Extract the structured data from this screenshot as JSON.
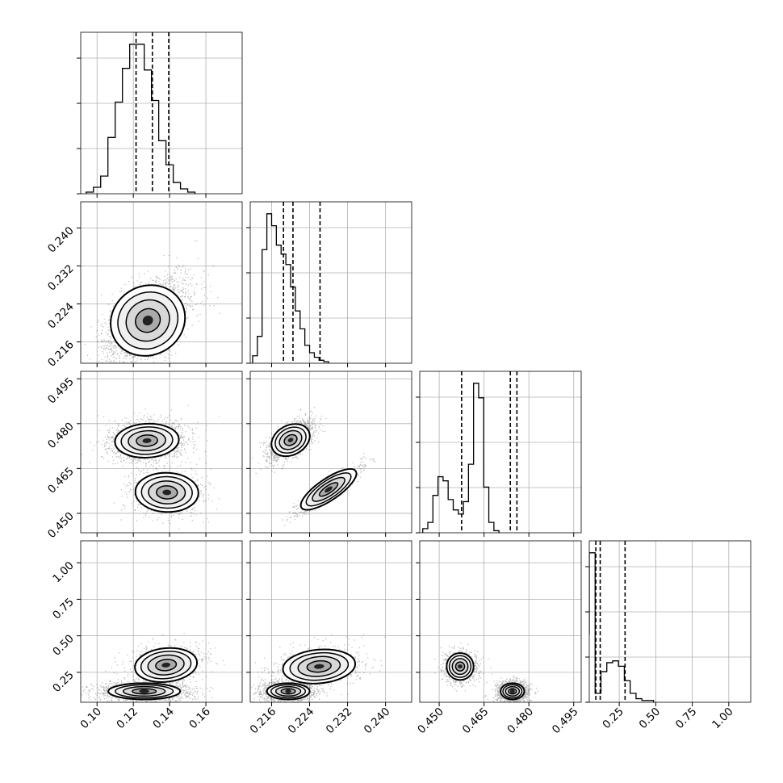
{
  "chart_data": {
    "type": "corner",
    "parameters": [
      "p0",
      "p1",
      "p2",
      "p3"
    ],
    "ranges": {
      "p0": [
        0.091,
        0.18
      ],
      "p1": [
        0.2115,
        0.2455
      ],
      "p2": [
        0.4435,
        0.4975
      ],
      "p3": [
        0.045,
        1.15
      ]
    },
    "ticks": {
      "p0": [
        0.1,
        0.12,
        0.14,
        0.16
      ],
      "p1": [
        0.216,
        0.224,
        0.232,
        0.24
      ],
      "p2": [
        0.45,
        0.465,
        0.48,
        0.495
      ],
      "p3": [
        0.25,
        0.5,
        0.75,
        1.0
      ]
    },
    "tick_labels": {
      "p0": [
        "0.10",
        "0.12",
        "0.14",
        "0.16"
      ],
      "p1": [
        "0.216",
        "0.224",
        "0.232",
        "0.240"
      ],
      "p2": [
        "0.450",
        "0.465",
        "0.480",
        "0.495"
      ],
      "p3": [
        "0.25",
        "0.50",
        "0.75",
        "1.00"
      ]
    },
    "quantiles": {
      "p0": [
        0.1215,
        0.1305,
        0.1395
      ],
      "p1": [
        0.2185,
        0.2205,
        0.2262
      ],
      "p2": [
        0.4575,
        0.4738,
        0.476
      ],
      "p3": [
        0.09,
        0.12,
        0.29
      ]
    },
    "histograms": {
      "p0": {
        "edges_start": 0.094,
        "bin_width": 0.004,
        "counts": [
          1,
          4,
          11,
          35,
          57,
          78,
          93,
          93,
          77,
          58,
          33,
          18,
          7,
          3,
          1
        ]
      },
      "p1": {
        "edges_start": 0.212,
        "bin_width": 0.001,
        "counts": [
          5,
          18,
          76,
          100,
          92,
          79,
          73,
          66,
          51,
          35,
          23,
          12,
          7,
          4,
          2,
          1
        ]
      },
      "p2": {
        "edges_start": 0.4445,
        "bin_width": 0.0017,
        "counts": [
          2,
          5,
          18,
          27,
          25,
          16,
          11,
          9,
          15,
          33,
          72,
          65,
          22,
          5,
          1
        ]
      },
      "p3": {
        "edges_start": 0.005,
        "bin_width": 0.04,
        "counts": [
          38,
          83,
          5,
          17,
          22,
          23,
          20,
          12,
          5,
          2,
          1,
          1
        ]
      }
    },
    "density": {
      "p1|p0": [
        {
          "mx": 0.128,
          "my": 0.2205,
          "sx": 0.01,
          "sy": 0.004,
          "rho": 0.55,
          "w": 1
        }
      ],
      "p2|p0": [
        {
          "mx": 0.1275,
          "my": 0.4743,
          "sx": 0.0095,
          "sy": 0.003,
          "rho": 0.1,
          "w": 0.7
        },
        {
          "mx": 0.1385,
          "my": 0.457,
          "sx": 0.0095,
          "sy": 0.0035,
          "rho": -0.05,
          "w": 0.3
        }
      ],
      "p2|p1": [
        {
          "mx": 0.22,
          "my": 0.4745,
          "sx": 0.002,
          "sy": 0.0028,
          "rho": 0.6,
          "w": 0.7
        },
        {
          "mx": 0.228,
          "my": 0.458,
          "sx": 0.003,
          "sy": 0.0035,
          "rho": 0.92,
          "w": 0.3
        }
      ],
      "p3|p0": [
        {
          "mx": 0.126,
          "my": 0.12,
          "sx": 0.011,
          "sy": 0.03,
          "rho": 0.0,
          "w": 0.65
        },
        {
          "mx": 0.138,
          "my": 0.3,
          "sx": 0.009,
          "sy": 0.06,
          "rho": 0.2,
          "w": 0.35
        }
      ],
      "p3|p1": [
        {
          "mx": 0.2195,
          "my": 0.12,
          "sx": 0.0025,
          "sy": 0.03,
          "rho": 0.0,
          "w": 0.65
        },
        {
          "mx": 0.226,
          "my": 0.29,
          "sx": 0.004,
          "sy": 0.06,
          "rho": 0.2,
          "w": 0.35
        }
      ],
      "p3|p2": [
        {
          "mx": 0.4745,
          "my": 0.12,
          "sx": 0.0022,
          "sy": 0.03,
          "rho": 0.0,
          "w": 0.65
        },
        {
          "mx": 0.457,
          "my": 0.29,
          "sx": 0.0025,
          "sy": 0.05,
          "rho": 0.0,
          "w": 0.35
        }
      ]
    },
    "grid": true,
    "colors": {
      "ink": "#000000",
      "grid": "#b0b0b0",
      "hist_fill": "#cccccc",
      "background": "#ffffff"
    }
  }
}
